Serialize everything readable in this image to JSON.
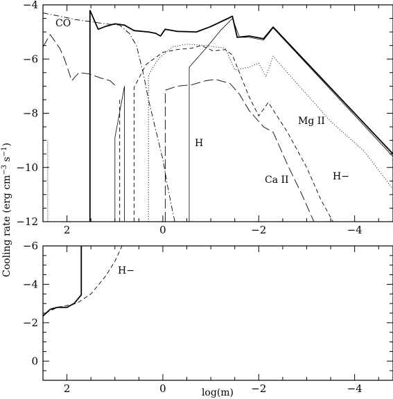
{
  "chart_data": [
    {
      "panel": "top",
      "type": "line",
      "xlim": [
        2.5,
        -4.8
      ],
      "ylim": [
        -12,
        -4
      ],
      "xticks": [
        2,
        0,
        -2,
        -4
      ],
      "xtick_labels": [
        "2",
        "0",
        "−2",
        "−4"
      ],
      "yticks": [
        -4,
        -6,
        -8,
        -10,
        -12
      ],
      "ytick_labels": [
        "−4",
        "−6",
        "−8",
        "−10",
        "−12"
      ],
      "series": [
        {
          "name": "total",
          "style": "thick-solid",
          "points": [
            [
              1.52,
              -4.2
            ],
            [
              1.35,
              -4.9
            ],
            [
              1.2,
              -4.8
            ],
            [
              1.0,
              -4.7
            ],
            [
              0.8,
              -4.75
            ],
            [
              0.6,
              -4.95
            ],
            [
              0.3,
              -5.0
            ],
            [
              0.15,
              -5.05
            ],
            [
              0.05,
              -5.15
            ],
            [
              -0.05,
              -4.9
            ],
            [
              -0.3,
              -4.98
            ],
            [
              -0.7,
              -5.0
            ],
            [
              -1.0,
              -4.8
            ],
            [
              -1.3,
              -4.55
            ],
            [
              -1.45,
              -4.42
            ],
            [
              -1.55,
              -5.2
            ],
            [
              -1.8,
              -5.15
            ],
            [
              -2.1,
              -5.25
            ],
            [
              -2.3,
              -4.82
            ],
            [
              -4.8,
              -9.5
            ]
          ]
        },
        {
          "name": "CO",
          "style": "dash-dot",
          "points": [
            [
              2.5,
              -4.3
            ],
            [
              2.2,
              -4.4
            ],
            [
              1.8,
              -4.55
            ],
            [
              1.5,
              -4.62
            ],
            [
              1.2,
              -4.7
            ],
            [
              0.9,
              -4.75
            ],
            [
              0.7,
              -5.05
            ],
            [
              0.55,
              -5.5
            ],
            [
              0.4,
              -6.6
            ],
            [
              0.3,
              -7.5
            ],
            [
              0.15,
              -8.6
            ],
            [
              0.0,
              -9.7
            ],
            [
              -0.1,
              -10.7
            ],
            [
              -0.2,
              -11.6
            ],
            [
              -0.25,
              -12.0
            ]
          ]
        },
        {
          "name": "H",
          "style": "thin-solid",
          "points": [
            [
              1.0,
              -12.0
            ],
            [
              1.0,
              -8.9
            ],
            [
              0.8,
              -7.0
            ],
            [
              0.8,
              -12.0
            ],
            [
              0.6,
              -12.0
            ]
          ]
        },
        {
          "name": "H",
          "style": "thin-solid",
          "points": [
            [
              -0.55,
              -12.0
            ],
            [
              -0.55,
              -6.3
            ],
            [
              -0.9,
              -5.6
            ],
            [
              -1.2,
              -4.95
            ],
            [
              -1.45,
              -4.5
            ],
            [
              -1.6,
              -5.2
            ],
            [
              -1.8,
              -5.2
            ],
            [
              -2.1,
              -5.3
            ],
            [
              -2.3,
              -4.85
            ],
            [
              -4.8,
              -9.6
            ]
          ]
        },
        {
          "name": "H−",
          "style": "short-dash",
          "points": [
            [
              0.6,
              -12.0
            ],
            [
              0.6,
              -7.05
            ],
            [
              0.35,
              -6.2
            ],
            [
              0.0,
              -5.75
            ],
            [
              -0.3,
              -5.65
            ],
            [
              -0.6,
              -5.6
            ],
            [
              -0.8,
              -5.5
            ],
            [
              -1.05,
              -5.7
            ],
            [
              -1.3,
              -5.65
            ],
            [
              -1.45,
              -5.85
            ],
            [
              -1.8,
              -7.4
            ],
            [
              -2.0,
              -8.1
            ],
            [
              -2.2,
              -7.6
            ],
            [
              -2.6,
              -8.7
            ],
            [
              -3.0,
              -10.0
            ],
            [
              -3.3,
              -11.2
            ],
            [
              -3.55,
              -12.0
            ]
          ]
        },
        {
          "name": "H−",
          "style": "short-dash",
          "points": [
            [
              0.9,
              -12.0
            ],
            [
              0.9,
              -7.45
            ]
          ]
        },
        {
          "name": "Mg II",
          "style": "dotted",
          "points": [
            [
              0.3,
              -12.0
            ],
            [
              0.3,
              -6.6
            ],
            [
              0.1,
              -6.0
            ],
            [
              -0.2,
              -5.55
            ],
            [
              -0.5,
              -5.45
            ],
            [
              -0.9,
              -5.5
            ],
            [
              -1.3,
              -5.6
            ],
            [
              -1.5,
              -6.4
            ],
            [
              -1.8,
              -6.3
            ],
            [
              -2.0,
              -6.15
            ],
            [
              -2.15,
              -6.65
            ],
            [
              -2.3,
              -5.9
            ],
            [
              -2.45,
              -6.2
            ],
            [
              -2.8,
              -6.9
            ],
            [
              -3.5,
              -8.3
            ],
            [
              -4.2,
              -9.4
            ],
            [
              -4.8,
              -10.8
            ]
          ]
        },
        {
          "name": "Ca II",
          "style": "long-dash",
          "points": [
            [
              2.5,
              -5.55
            ],
            [
              2.35,
              -5.1
            ],
            [
              2.15,
              -5.6
            ],
            [
              2.05,
              -6.0
            ],
            [
              1.9,
              -6.8
            ],
            [
              1.75,
              -6.5
            ],
            [
              1.52,
              -6.55
            ],
            [
              1.3,
              -6.7
            ],
            [
              1.1,
              -6.8
            ],
            [
              0.95,
              -7.05
            ]
          ]
        },
        {
          "name": "Ca II",
          "style": "long-dash",
          "points": [
            [
              -0.05,
              -12.0
            ],
            [
              -0.05,
              -7.15
            ],
            [
              -0.3,
              -7.0
            ],
            [
              -0.6,
              -6.95
            ],
            [
              -0.9,
              -6.8
            ],
            [
              -1.1,
              -6.75
            ],
            [
              -1.4,
              -6.9
            ],
            [
              -1.6,
              -7.3
            ],
            [
              -1.8,
              -7.9
            ],
            [
              -2.1,
              -8.5
            ],
            [
              -2.3,
              -8.7
            ],
            [
              -2.6,
              -9.9
            ],
            [
              -2.9,
              -11.0
            ],
            [
              -3.15,
              -12.0
            ]
          ]
        },
        {
          "name": "step",
          "style": "thick-solid",
          "points": [
            [
              1.52,
              -12.0
            ],
            [
              1.52,
              -4.2
            ]
          ]
        },
        {
          "name": "edge",
          "style": "fine-dotted",
          "points": [
            [
              2.4,
              -9.0
            ],
            [
              2.4,
              -12.0
            ]
          ]
        }
      ],
      "annotations": [
        "CO",
        "H",
        "Mg II",
        "Ca II",
        "H−"
      ]
    },
    {
      "panel": "bottom",
      "type": "line",
      "xlim": [
        2.5,
        -4.8
      ],
      "ylim": [
        1,
        -6
      ],
      "xticks": [
        2,
        0,
        -2,
        -4
      ],
      "xtick_labels": [
        "2",
        "0",
        "−2",
        "−4"
      ],
      "yticks": [
        0,
        -2,
        -4,
        -6
      ],
      "ytick_labels": [
        "0",
        "−2",
        "−4",
        "−6"
      ],
      "series": [
        {
          "name": "total",
          "style": "thick-solid",
          "points": [
            [
              2.5,
              -2.35
            ],
            [
              2.35,
              -2.7
            ],
            [
              2.2,
              -2.8
            ],
            [
              2.0,
              -2.8
            ],
            [
              1.85,
              -3.0
            ],
            [
              1.7,
              -3.45
            ],
            [
              1.7,
              -6.0
            ]
          ]
        },
        {
          "name": "H−",
          "style": "short-dash",
          "points": [
            [
              2.45,
              -2.5
            ],
            [
              2.2,
              -2.8
            ],
            [
              1.8,
              -3.0
            ],
            [
              1.5,
              -3.5
            ],
            [
              1.2,
              -4.4
            ],
            [
              1.0,
              -5.2
            ],
            [
              0.85,
              -6.0
            ]
          ]
        }
      ],
      "annotations": [
        "H−"
      ]
    }
  ],
  "labels": {
    "y_axis": "Cooling rate (erg cm",
    "y_exp1": "−3",
    "y_mid": " s",
    "y_exp2": "−1",
    "y_close": ")",
    "x_axis": "log(m)"
  }
}
